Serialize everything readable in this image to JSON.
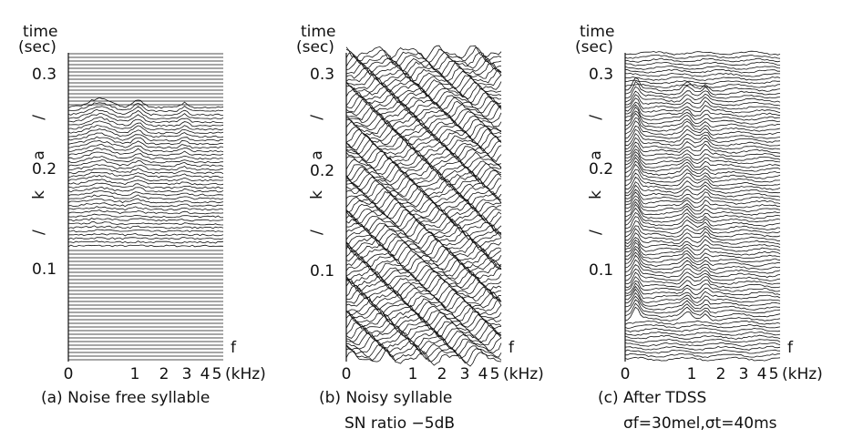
{
  "panels": [
    {
      "time_label": "time",
      "unit_label": "(sec)",
      "phoneme": "/ k a /",
      "yticks": [
        "0.1",
        "0.2",
        "0.3"
      ],
      "xticks": [
        "0",
        "1",
        "2",
        "3",
        "4",
        "5"
      ],
      "x_unit": "(kHz)",
      "f_label": "f",
      "caption": [
        "(a) Noise free syllable"
      ]
    },
    {
      "time_label": "time",
      "unit_label": "(sec)",
      "phoneme": "/ k a /",
      "yticks": [
        "0.1",
        "0.2",
        "0.3"
      ],
      "xticks": [
        "0",
        "1",
        "2",
        "3",
        "4",
        "5"
      ],
      "x_unit": "(kHz)",
      "f_label": "f",
      "caption": [
        "(b) Noisy syllable",
        "SN ratio −5dB"
      ]
    },
    {
      "time_label": "time",
      "unit_label": "(sec)",
      "phoneme": "/ k a /",
      "yticks": [
        "0.1",
        "0.2",
        "0.3"
      ],
      "xticks": [
        "0",
        "1",
        "2",
        "3",
        "4",
        "5"
      ],
      "x_unit": "(kHz)",
      "f_label": "f",
      "caption": [
        "(c) After TDSS",
        "σf=30mel,σt=40ms"
      ]
    }
  ]
}
